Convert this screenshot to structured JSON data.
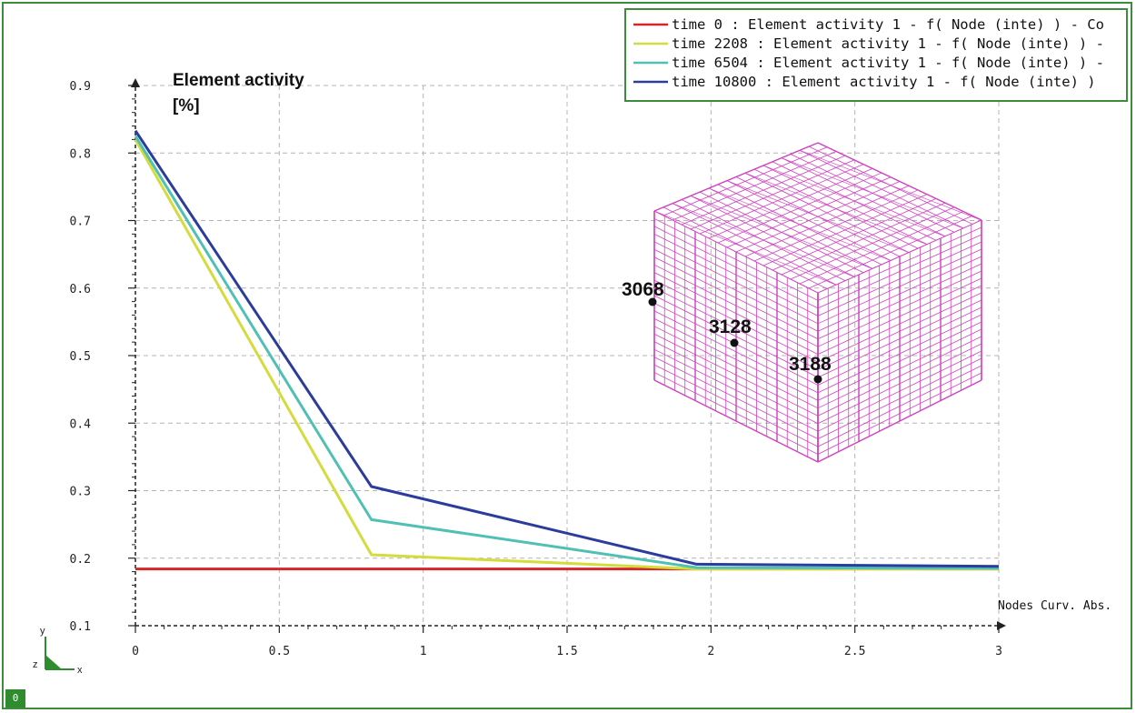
{
  "corner_badge": "0",
  "triad": {
    "y": "y",
    "z": "z",
    "x": "x"
  },
  "colors": {
    "grid": "#b4b4b4",
    "axis": "#222222",
    "mesh": "#d040c0",
    "frame": "#3c8c3c"
  },
  "mesh_nodes": [
    {
      "label": "3068"
    },
    {
      "label": "3128"
    },
    {
      "label": "3188"
    }
  ],
  "chart_data": {
    "type": "line",
    "title": "",
    "ylabel": [
      "Element activity",
      "[%]"
    ],
    "xlabel": "Nodes Curv. Abs.",
    "xlim": [
      0,
      3
    ],
    "ylim": [
      0.1,
      0.9
    ],
    "xticks": [
      0,
      0.5,
      1,
      1.5,
      2,
      2.5,
      3
    ],
    "xtick_labels": [
      "0",
      "0.5",
      "1",
      "1.5",
      "2",
      "2.5",
      "3"
    ],
    "yticks": [
      0.1,
      0.2,
      0.3,
      0.4,
      0.5,
      0.6,
      0.7,
      0.8,
      0.9
    ],
    "ytick_labels": [
      "0.1",
      "0.2",
      "0.3",
      "0.4",
      "0.5",
      "0.6",
      "0.7",
      "0.8",
      "0.9"
    ],
    "grid": true,
    "legend_position": "top-right",
    "series": [
      {
        "name": "time 0 : Element activity  1 - f( Node (inte) ) -  Co",
        "color": "#d62728",
        "x": [
          0,
          0.82,
          1.95,
          3
        ],
        "y": [
          0.184,
          0.184,
          0.184,
          0.184
        ]
      },
      {
        "name": "time 2208 : Element activity  1 - f( Node (inte) ) -",
        "color": "#d4dc3c",
        "x": [
          0,
          0.82,
          1.95,
          3
        ],
        "y": [
          0.82,
          0.205,
          0.184,
          0.184
        ]
      },
      {
        "name": "time 6504 : Element activity  1 - f( Node (inte) ) -",
        "color": "#50c0b4",
        "x": [
          0,
          0.82,
          1.95,
          3
        ],
        "y": [
          0.825,
          0.257,
          0.186,
          0.185
        ]
      },
      {
        "name": "time 10800 : Element activity  1 - f( Node (inte) )",
        "color": "#2c3c9c",
        "x": [
          0,
          0.82,
          1.95,
          3
        ],
        "y": [
          0.833,
          0.306,
          0.191,
          0.188
        ]
      }
    ]
  }
}
